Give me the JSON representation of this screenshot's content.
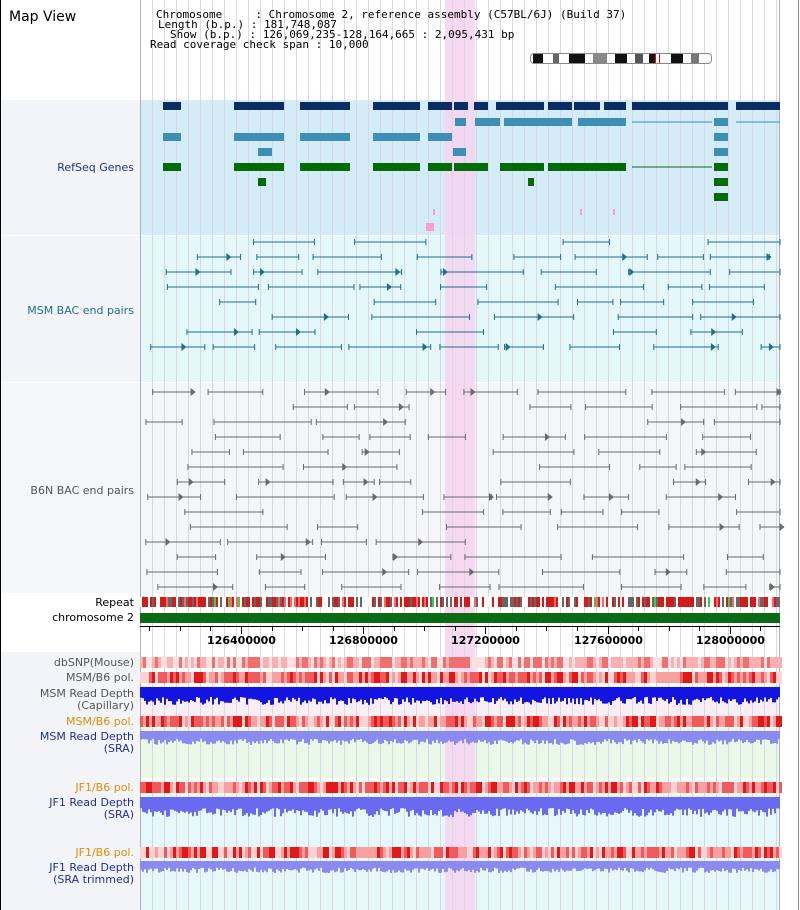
{
  "title": "Map View",
  "info": {
    "chromosome_label": "Chromosome",
    "chromosome_value": "Chromosome 2, reference assembly (C57BL/6J) (Build 37)",
    "length_label": "Length (b.p.)",
    "length_value": "181,748,087",
    "show_label": "Show (b.p.)",
    "show_value": "126,069,235-128,164,665 : 2,095,431 bp",
    "coverage_label": "Read coverage check span",
    "coverage_value": "10,000"
  },
  "colors": {
    "refseq_bg": "#d4ecf8",
    "bac_bg": "#e4f8fa",
    "b6n_bg": "#f4f6f8",
    "highlight": "#f6d4f0",
    "gene_dark": "#0a2d63",
    "gene_mid": "#3f8fb5",
    "gene_green": "#046b0a",
    "msm_bac": "#1f6e8e",
    "b6n_bac": "#6a6a6a",
    "chromosome_bar": "#0b6a12",
    "label_blue": "#1e2f9a",
    "label_teal": "#1f6e8e",
    "label_gray": "#555555",
    "label_orange": "#e38c00"
  },
  "tracks": [
    {
      "name": "RefSeq Genes",
      "lines": [
        "RefSeq Genes"
      ],
      "color": "label_blue"
    },
    {
      "name": "MSM BAC end pairs",
      "lines": [
        "MSM BAC end pairs"
      ],
      "color": "label_teal"
    },
    {
      "name": "B6N BAC end pairs",
      "lines": [
        "B6N BAC end pairs"
      ],
      "color": "label_gray"
    },
    {
      "name": "Repeat",
      "lines": [
        "Repeat"
      ],
      "color": "black"
    },
    {
      "name": "chromosome 2",
      "lines": [
        "chromosome 2"
      ],
      "color": "black"
    },
    {
      "name": "dbSNP(Mouse)",
      "lines": [
        "dbSNP(Mouse)"
      ],
      "color": "label_gray"
    },
    {
      "name": "MSM/B6 pol.",
      "lines": [
        "MSM/B6 pol."
      ],
      "color": "label_gray"
    },
    {
      "name": "MSM Read Depth (Capillary)",
      "lines": [
        "MSM Read Depth",
        "(Capillary)"
      ],
      "color": "label_gray"
    },
    {
      "name": "MSM/B6 pol. (SRA)",
      "lines": [
        "MSM/B6 pol."
      ],
      "color": "label_orange"
    },
    {
      "name": "MSM Read Depth (SRA)",
      "lines": [
        "MSM Read Depth",
        "(SRA)"
      ],
      "color": "label_blue"
    },
    {
      "name": "JF1/B6 pol.",
      "lines": [
        "JF1/B6 pol."
      ],
      "color": "label_orange"
    },
    {
      "name": "JF1 Read Depth (SRA)",
      "lines": [
        "JF1 Read Depth",
        "(SRA)"
      ],
      "color": "label_blue"
    },
    {
      "name": "JF1/B6 pol. (trimmed)",
      "lines": [
        "JF1/B6 pol."
      ],
      "color": "label_orange"
    },
    {
      "name": "JF1 Read Depth (SRA trimmed)",
      "lines": [
        "JF1 Read Depth",
        "(SRA trimmed)"
      ],
      "color": "label_blue"
    }
  ],
  "ruler": {
    "ticks": [
      {
        "label": "126400000",
        "value": 126400000
      },
      {
        "label": "126800000",
        "value": 126800000
      },
      {
        "label": "127200000",
        "value": 127200000
      },
      {
        "label": "127600000",
        "value": 127600000
      },
      {
        "label": "128000000",
        "value": 128000000
      }
    ],
    "range": [
      126069235,
      128164665
    ]
  }
}
